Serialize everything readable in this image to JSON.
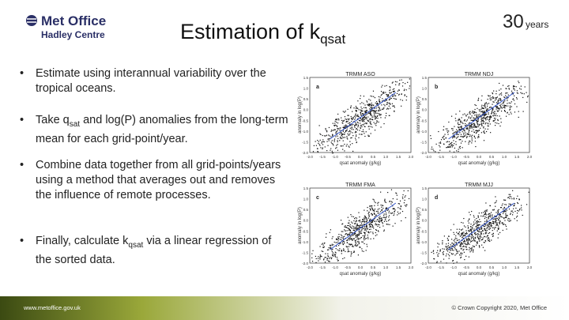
{
  "header": {
    "logo_line1": "Met Office",
    "logo_line2": "Hadley Centre",
    "title": "Estimation of k",
    "title_sub": "qsat",
    "badge_number": "30",
    "badge_word": "years"
  },
  "bullets": [
    [
      "Estimate using interannual variability over the tropical oceans."
    ],
    [
      "Take q",
      "sat",
      " and log(P) anomalies from the long-term mean for each grid-point/year."
    ],
    [
      "Combine data together from all grid-points/years using a method that averages out and removes the influence of remote processes."
    ],
    [
      "Finally, calculate k",
      "qsat",
      " via a linear regression of the sorted data."
    ]
  ],
  "figure": {
    "xlabel": "qsat anomaly (g/kg)",
    "ylabel": "anomaly in log(P)",
    "xticks": [
      "-2.0",
      "-1.5",
      "-1.0",
      "-0.5",
      "0.0",
      "0.5",
      "1.0",
      "1.5",
      "2.0"
    ],
    "yticks": [
      "1.5",
      "1.0",
      "0.5",
      "0.0",
      "-0.5",
      "-1.0",
      "-1.5",
      "-2.0"
    ],
    "panels": [
      {
        "letter": "a",
        "title": "TRMM  ASO"
      },
      {
        "letter": "b",
        "title": "TRMM  NDJ"
      },
      {
        "letter": "c",
        "title": "TRMM  FMA"
      },
      {
        "letter": "d",
        "title": "TRMM  MJJ"
      }
    ]
  },
  "footer": {
    "url": "www.metoffice.gov.uk",
    "copyright": "© Crown Copyright 2020, Met Office"
  }
}
